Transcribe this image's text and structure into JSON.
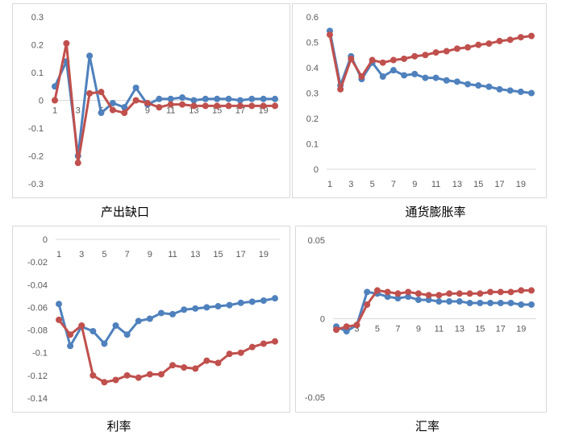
{
  "colors": {
    "series_blue": "#4F81BD",
    "series_red": "#C0504D"
  },
  "chart_data": [
    {
      "type": "line",
      "caption": "产出缺口",
      "x": [
        1,
        2,
        3,
        4,
        5,
        6,
        7,
        8,
        9,
        10,
        11,
        12,
        13,
        14,
        15,
        16,
        17,
        18,
        19,
        20
      ],
      "x_tick_labels": [
        "1",
        "3",
        "5",
        "7",
        "9",
        "11",
        "13",
        "15",
        "17",
        "19"
      ],
      "y_tick_labels": [
        "0.3",
        "0.2",
        "0.1",
        "0",
        "-0.1",
        "-0.2",
        "-0.3"
      ],
      "ylim": [
        -0.3,
        0.3
      ],
      "series": [
        {
          "color": "#4F81BD",
          "values": [
            0.05,
            0.14,
            -0.2,
            0.16,
            -0.045,
            -0.01,
            -0.025,
            0.045,
            -0.015,
            0.005,
            0.005,
            0.01,
            0.0,
            0.005,
            0.005,
            0.005,
            0.0,
            0.005,
            0.005,
            0.005
          ]
        },
        {
          "color": "#C0504D",
          "values": [
            0.0,
            0.205,
            -0.225,
            0.025,
            0.03,
            -0.035,
            -0.045,
            0.0,
            -0.01,
            -0.025,
            -0.015,
            -0.015,
            -0.02,
            -0.02,
            -0.02,
            -0.02,
            -0.02,
            -0.02,
            -0.02,
            -0.02
          ]
        }
      ]
    },
    {
      "type": "line",
      "caption": "通货膨胀率",
      "x": [
        1,
        2,
        3,
        4,
        5,
        6,
        7,
        8,
        9,
        10,
        11,
        12,
        13,
        14,
        15,
        16,
        17,
        18,
        19,
        20
      ],
      "x_tick_labels": [
        "1",
        "3",
        "5",
        "7",
        "9",
        "11",
        "13",
        "15",
        "17",
        "19"
      ],
      "y_tick_labels": [
        "0.6",
        "0.5",
        "0.4",
        "0.3",
        "0.2",
        "0.1",
        "0"
      ],
      "ylim": [
        0,
        0.6
      ],
      "series": [
        {
          "color": "#4F81BD",
          "values": [
            0.545,
            0.33,
            0.445,
            0.355,
            0.42,
            0.365,
            0.39,
            0.37,
            0.375,
            0.36,
            0.36,
            0.35,
            0.345,
            0.335,
            0.33,
            0.325,
            0.315,
            0.31,
            0.305,
            0.3
          ]
        },
        {
          "color": "#C0504D",
          "values": [
            0.53,
            0.315,
            0.435,
            0.365,
            0.43,
            0.42,
            0.43,
            0.435,
            0.445,
            0.45,
            0.46,
            0.465,
            0.475,
            0.48,
            0.49,
            0.495,
            0.505,
            0.51,
            0.52,
            0.525
          ]
        }
      ]
    },
    {
      "type": "line",
      "caption": "利率",
      "x": [
        1,
        2,
        3,
        4,
        5,
        6,
        7,
        8,
        9,
        10,
        11,
        12,
        13,
        14,
        15,
        16,
        17,
        18,
        19,
        20
      ],
      "x_tick_labels": [
        "1",
        "3",
        "5",
        "7",
        "9",
        "11",
        "13",
        "15",
        "17",
        "19"
      ],
      "y_tick_labels": [
        "0",
        "-0.02",
        "-0.04",
        "-0.06",
        "-0.08",
        "-0.1",
        "-0.12",
        "-0.14"
      ],
      "ylim": [
        -0.14,
        0
      ],
      "series": [
        {
          "color": "#4F81BD",
          "values": [
            -0.057,
            -0.094,
            -0.077,
            -0.081,
            -0.092,
            -0.076,
            -0.084,
            -0.072,
            -0.07,
            -0.065,
            -0.066,
            -0.062,
            -0.061,
            -0.06,
            -0.059,
            -0.058,
            -0.056,
            -0.055,
            -0.054,
            -0.052
          ]
        },
        {
          "color": "#C0504D",
          "values": [
            -0.071,
            -0.084,
            -0.076,
            -0.12,
            -0.126,
            -0.124,
            -0.12,
            -0.122,
            -0.119,
            -0.119,
            -0.111,
            -0.113,
            -0.114,
            -0.107,
            -0.109,
            -0.101,
            -0.1,
            -0.095,
            -0.092,
            -0.09
          ]
        }
      ]
    },
    {
      "type": "line",
      "caption": "汇率",
      "x": [
        1,
        2,
        3,
        4,
        5,
        6,
        7,
        8,
        9,
        10,
        11,
        12,
        13,
        14,
        15,
        16,
        17,
        18,
        19,
        20
      ],
      "x_tick_labels": [
        "1",
        "3",
        "5",
        "7",
        "9",
        "11",
        "13",
        "15",
        "17",
        "19"
      ],
      "y_tick_labels": [
        "0.05",
        "0",
        "-0.05"
      ],
      "ylim": [
        -0.05,
        0.05
      ],
      "series": [
        {
          "color": "#4F81BD",
          "values": [
            -0.005,
            -0.008,
            -0.004,
            0.017,
            0.016,
            0.014,
            0.013,
            0.014,
            0.012,
            0.012,
            0.011,
            0.011,
            0.011,
            0.01,
            0.01,
            0.01,
            0.01,
            0.01,
            0.009,
            0.009
          ]
        },
        {
          "color": "#C0504D",
          "values": [
            -0.007,
            -0.005,
            -0.004,
            0.009,
            0.018,
            0.017,
            0.016,
            0.017,
            0.016,
            0.015,
            0.015,
            0.016,
            0.016,
            0.016,
            0.016,
            0.017,
            0.017,
            0.017,
            0.018,
            0.018
          ]
        }
      ]
    }
  ]
}
